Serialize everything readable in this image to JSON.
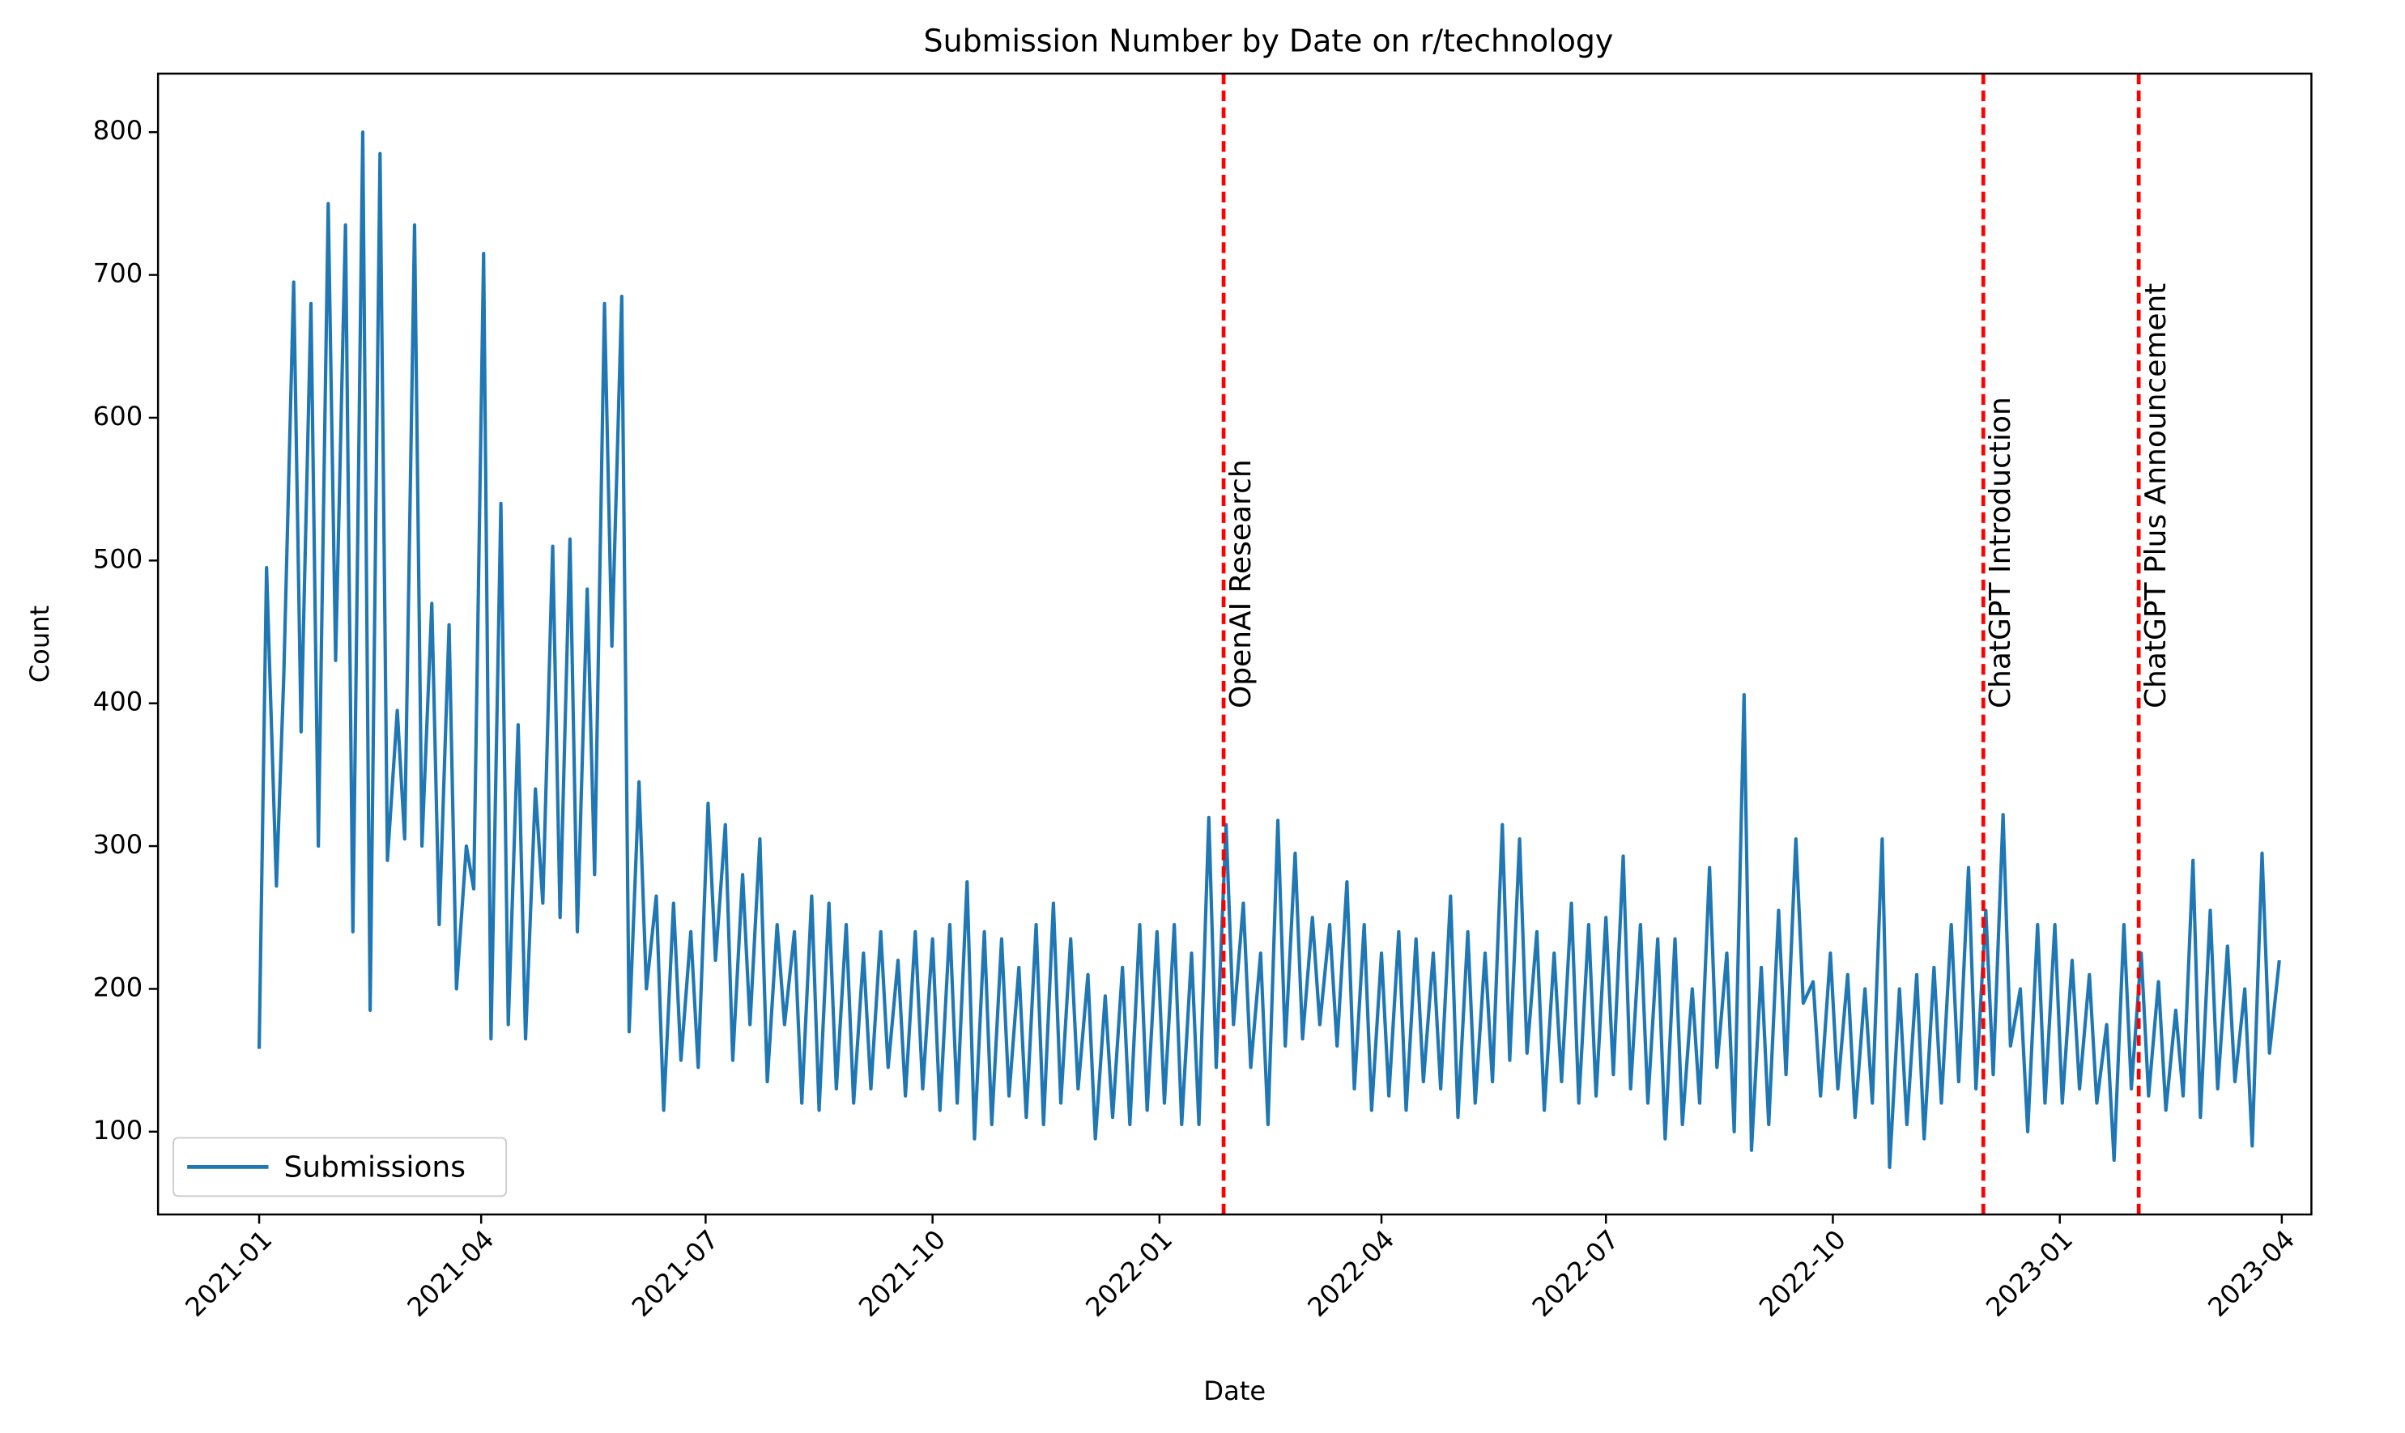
{
  "chart_data": {
    "type": "line",
    "title": "Submission Number by Date on r/technology",
    "xlabel": "Date",
    "ylabel": "Count",
    "x": [
      0,
      3,
      7,
      10,
      14,
      17,
      21,
      24,
      28,
      31,
      35,
      38,
      42,
      45,
      49,
      52,
      56,
      59,
      63,
      66,
      70,
      73,
      77,
      80,
      84,
      87,
      91,
      94,
      98,
      101,
      105,
      108,
      112,
      115,
      119,
      122,
      126,
      129,
      133,
      136,
      140,
      143,
      147,
      150,
      154,
      157,
      161,
      164,
      168,
      171,
      175,
      178,
      182,
      185,
      189,
      192,
      196,
      199,
      203,
      206,
      210,
      213,
      217,
      220,
      224,
      227,
      231,
      234,
      238,
      241,
      245,
      248,
      252,
      255,
      259,
      262,
      266,
      269,
      273,
      276,
      280,
      283,
      287,
      290,
      294,
      297,
      301,
      304,
      308,
      311,
      315,
      318,
      322,
      325,
      329,
      332,
      336,
      339,
      343,
      346,
      350,
      353,
      357,
      360,
      364,
      367,
      371,
      374,
      378,
      381,
      385,
      388,
      392,
      395,
      399,
      402,
      406,
      409,
      413,
      416,
      420,
      423,
      427,
      430,
      434,
      437,
      441,
      444,
      448,
      451,
      455,
      458,
      462,
      465,
      469,
      472,
      476,
      479,
      483,
      486,
      490,
      493,
      497,
      500,
      504,
      507,
      511,
      514,
      518,
      521,
      525,
      528,
      532,
      535,
      539,
      542,
      546,
      549,
      553,
      556,
      560,
      563,
      567,
      570,
      574,
      577,
      581,
      584,
      588,
      591,
      595,
      598,
      602,
      605,
      609,
      612,
      616,
      619,
      623,
      626,
      630,
      633,
      637,
      640,
      644,
      647,
      651,
      654,
      658,
      661,
      665,
      668,
      672,
      675,
      679,
      682,
      686,
      689,
      693,
      696,
      700,
      703,
      707,
      710,
      714,
      717,
      721,
      724,
      728,
      731,
      735,
      738,
      742,
      745,
      749,
      752,
      756,
      759,
      763,
      766,
      770,
      773,
      777,
      780,
      784,
      787,
      791,
      794,
      798,
      801,
      805,
      808,
      812,
      815,
      819
    ],
    "series": [
      {
        "name": "Submissions",
        "color": "#1f77b4",
        "values": [
          158,
          495,
          272,
          420,
          695,
          380,
          680,
          300,
          750,
          430,
          735,
          240,
          800,
          185,
          785,
          290,
          395,
          305,
          735,
          300,
          470,
          245,
          455,
          200,
          300,
          270,
          715,
          165,
          540,
          175,
          385,
          165,
          340,
          260,
          510,
          250,
          515,
          240,
          480,
          280,
          680,
          440,
          685,
          170,
          345,
          200,
          265,
          115,
          260,
          150,
          240,
          145,
          330,
          220,
          315,
          150,
          280,
          175,
          305,
          135,
          245,
          175,
          240,
          120,
          265,
          115,
          260,
          130,
          245,
          120,
          225,
          130,
          240,
          145,
          220,
          125,
          240,
          130,
          235,
          115,
          245,
          120,
          275,
          95,
          240,
          105,
          235,
          125,
          215,
          110,
          245,
          105,
          260,
          120,
          235,
          130,
          210,
          95,
          195,
          110,
          215,
          105,
          245,
          115,
          240,
          120,
          245,
          105,
          225,
          105,
          320,
          145,
          315,
          175,
          260,
          145,
          225,
          105,
          318,
          160,
          295,
          165,
          250,
          175,
          245,
          160,
          275,
          130,
          245,
          115,
          225,
          125,
          240,
          115,
          235,
          135,
          225,
          130,
          265,
          110,
          240,
          120,
          225,
          135,
          315,
          150,
          305,
          155,
          240,
          115,
          225,
          135,
          260,
          120,
          245,
          125,
          250,
          140,
          293,
          130,
          245,
          120,
          235,
          95,
          235,
          105,
          200,
          120,
          285,
          145,
          225,
          100,
          406,
          87,
          215,
          105,
          255,
          140,
          305,
          190,
          205,
          125,
          225,
          130,
          210,
          110,
          200,
          120,
          305,
          75,
          200,
          105,
          210,
          95,
          215,
          120,
          245,
          135,
          285,
          130,
          255,
          140,
          322,
          160,
          200,
          100,
          245,
          120,
          245,
          120,
          220,
          130,
          210,
          120,
          175,
          80,
          245,
          130,
          225,
          125,
          205,
          115,
          185,
          125,
          290,
          110,
          255,
          130,
          230,
          135,
          200,
          90,
          295,
          155,
          220
        ]
      }
    ],
    "xlim": [
      -41,
      832
    ],
    "ylim": [
      42,
      841
    ],
    "xticks": [
      {
        "value": 0,
        "label": "2021-01"
      },
      {
        "value": 90,
        "label": "2021-04"
      },
      {
        "value": 181,
        "label": "2021-07"
      },
      {
        "value": 273,
        "label": "2021-10"
      },
      {
        "value": 365,
        "label": "2022-01"
      },
      {
        "value": 455,
        "label": "2022-04"
      },
      {
        "value": 546,
        "label": "2022-07"
      },
      {
        "value": 638,
        "label": "2022-10"
      },
      {
        "value": 730,
        "label": "2023-01"
      },
      {
        "value": 820,
        "label": "2023-04"
      }
    ],
    "yticks": [
      100,
      200,
      300,
      400,
      500,
      600,
      700,
      800
    ],
    "legend": "lower left",
    "annotations": [
      {
        "x": 391,
        "label": "OpenAI Research",
        "color": "#ff0000"
      },
      {
        "x": 699,
        "label": "ChatGPT Introduction",
        "color": "#ff0000"
      },
      {
        "x": 762,
        "label": "ChatGPT Plus Announcement",
        "color": "#ff0000"
      }
    ]
  }
}
